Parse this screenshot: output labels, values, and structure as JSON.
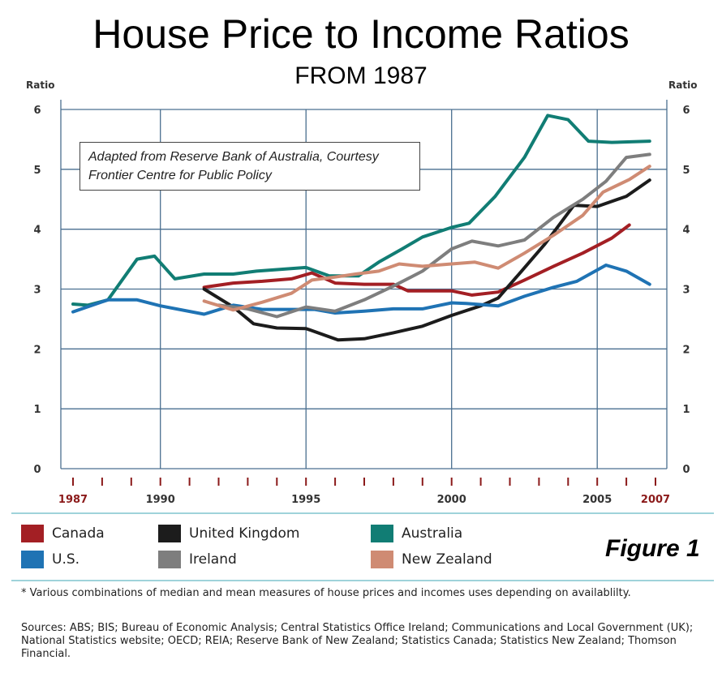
{
  "title": "House Price to Income Ratios",
  "subtitle": "FROM 1987",
  "note": {
    "line1": "Adapted from Reserve Bank of Australia, Courtesy",
    "line2": "Frontier Centre for Public Policy"
  },
  "figure_label": "Figure 1",
  "footnote": "* Various combinations of median and mean measures of house prices and incomes uses depending on availablilty.",
  "sources": "Sources: ABS; BIS; Bureau of Economic Analysis; Central Statistics Office Ireland; Communications and Local Government (UK); National Statistics website; OECD; REIA; Reserve Bank of New Zealand; Statistics Canada; Statistics New Zealand; Thomson Financial.",
  "colors": {
    "grid": "#4a6f90",
    "axis_red": "#8b1a1a"
  },
  "chart_data": {
    "type": "line",
    "title": "House Price to Income Ratios",
    "ylabel_left": "Ratio",
    "ylabel_right": "Ratio",
    "ylim": [
      0,
      6
    ],
    "yticks": [
      0,
      1,
      2,
      3,
      4,
      5,
      6
    ],
    "xlim": [
      1987,
      2007
    ],
    "xtick_labels": [
      {
        "value": 1987,
        "label": "1987",
        "highlight": true
      },
      {
        "value": 1990,
        "label": "1990",
        "highlight": false
      },
      {
        "value": 1995,
        "label": "1995",
        "highlight": false
      },
      {
        "value": 2000,
        "label": "2000",
        "highlight": false
      },
      {
        "value": 2005,
        "label": "2005",
        "highlight": false
      },
      {
        "value": 2007,
        "label": "2007",
        "highlight": true
      }
    ],
    "minor_ticks": [
      1988,
      1989,
      1991,
      1992,
      1993,
      1994,
      1996,
      1997,
      1998,
      1999,
      2001,
      2002,
      2003,
      2004,
      2006
    ],
    "legend_placement": "bottom",
    "series": [
      {
        "name": "Canada",
        "color": "#a31f24",
        "points": [
          [
            1991.5,
            3.03
          ],
          [
            1992.5,
            3.1
          ],
          [
            1993.5,
            3.13
          ],
          [
            1994.5,
            3.17
          ],
          [
            1995.2,
            3.27
          ],
          [
            1996,
            3.1
          ],
          [
            1997,
            3.08
          ],
          [
            1998,
            3.08
          ],
          [
            1998.5,
            2.97
          ],
          [
            2000,
            2.97
          ],
          [
            2000.7,
            2.9
          ],
          [
            2001.6,
            2.95
          ],
          [
            2002.5,
            3.15
          ],
          [
            2003.5,
            3.38
          ],
          [
            2004.5,
            3.6
          ],
          [
            2005.5,
            3.85
          ],
          [
            2006.1,
            4.07
          ]
        ]
      },
      {
        "name": "United Kingdom",
        "color": "#1c1c1c",
        "points": [
          [
            1991.5,
            3.0
          ],
          [
            1992.5,
            2.7
          ],
          [
            1993.2,
            2.42
          ],
          [
            1994,
            2.35
          ],
          [
            1995,
            2.34
          ],
          [
            1996.1,
            2.15
          ],
          [
            1997,
            2.17
          ],
          [
            1998,
            2.27
          ],
          [
            1999,
            2.38
          ],
          [
            2000,
            2.56
          ],
          [
            2001,
            2.72
          ],
          [
            2001.6,
            2.85
          ],
          [
            2002.4,
            3.3
          ],
          [
            2003.2,
            3.75
          ],
          [
            2004.2,
            4.4
          ],
          [
            2005,
            4.38
          ],
          [
            2006,
            4.55
          ],
          [
            2006.8,
            4.82
          ]
        ]
      },
      {
        "name": "Australia",
        "color": "#117d74",
        "points": [
          [
            1987,
            2.75
          ],
          [
            1987.5,
            2.73
          ],
          [
            1988.2,
            2.82
          ],
          [
            1989.2,
            3.5
          ],
          [
            1989.8,
            3.55
          ],
          [
            1990.5,
            3.17
          ],
          [
            1991.5,
            3.25
          ],
          [
            1992.5,
            3.25
          ],
          [
            1993.3,
            3.3
          ],
          [
            1995,
            3.36
          ],
          [
            1995.8,
            3.22
          ],
          [
            1996.8,
            3.22
          ],
          [
            1997.5,
            3.45
          ],
          [
            1998.3,
            3.67
          ],
          [
            1999,
            3.87
          ],
          [
            2000,
            4.03
          ],
          [
            2000.6,
            4.1
          ],
          [
            2001.5,
            4.55
          ],
          [
            2002.5,
            5.2
          ],
          [
            2003.3,
            5.9
          ],
          [
            2004,
            5.83
          ],
          [
            2004.7,
            5.47
          ],
          [
            2005.5,
            5.45
          ],
          [
            2006.8,
            5.47
          ]
        ]
      },
      {
        "name": "U.S.",
        "color": "#1f73b4",
        "points": [
          [
            1987,
            2.62
          ],
          [
            1988.2,
            2.82
          ],
          [
            1989.2,
            2.82
          ],
          [
            1990,
            2.72
          ],
          [
            1991.5,
            2.58
          ],
          [
            1992.5,
            2.73
          ],
          [
            1993.5,
            2.66
          ],
          [
            1994.5,
            2.66
          ],
          [
            1995.3,
            2.66
          ],
          [
            1996,
            2.6
          ],
          [
            1997,
            2.63
          ],
          [
            1998,
            2.67
          ],
          [
            1999,
            2.67
          ],
          [
            2000,
            2.77
          ],
          [
            2000.5,
            2.76
          ],
          [
            2001.6,
            2.72
          ],
          [
            2002.5,
            2.88
          ],
          [
            2003.5,
            3.03
          ],
          [
            2004.3,
            3.13
          ],
          [
            2005.3,
            3.4
          ],
          [
            2006,
            3.3
          ],
          [
            2006.8,
            3.08
          ]
        ]
      },
      {
        "name": "Ireland",
        "color": "#7e7e7e",
        "points": [
          [
            1992,
            2.73
          ],
          [
            1993,
            2.67
          ],
          [
            1994,
            2.54
          ],
          [
            1995,
            2.7
          ],
          [
            1996,
            2.63
          ],
          [
            1997,
            2.82
          ],
          [
            1998,
            3.05
          ],
          [
            1999,
            3.3
          ],
          [
            2000,
            3.67
          ],
          [
            2000.7,
            3.8
          ],
          [
            2001.6,
            3.72
          ],
          [
            2002.5,
            3.82
          ],
          [
            2003.5,
            4.2
          ],
          [
            2004.5,
            4.5
          ],
          [
            2005.3,
            4.8
          ],
          [
            2006,
            5.2
          ],
          [
            2006.8,
            5.25
          ]
        ]
      },
      {
        "name": "New Zealand",
        "color": "#cf8b73",
        "points": [
          [
            1991.5,
            2.8
          ],
          [
            1992.5,
            2.65
          ],
          [
            1993.5,
            2.78
          ],
          [
            1994.5,
            2.93
          ],
          [
            1995.2,
            3.15
          ],
          [
            1996,
            3.2
          ],
          [
            1996.7,
            3.25
          ],
          [
            1997.5,
            3.3
          ],
          [
            1998.2,
            3.42
          ],
          [
            1999,
            3.38
          ],
          [
            2000,
            3.42
          ],
          [
            2000.8,
            3.45
          ],
          [
            2001.6,
            3.35
          ],
          [
            2002.5,
            3.6
          ],
          [
            2003.5,
            3.9
          ],
          [
            2004.5,
            4.23
          ],
          [
            2005.2,
            4.62
          ],
          [
            2006.1,
            4.83
          ],
          [
            2006.8,
            5.05
          ]
        ]
      }
    ]
  },
  "legend": [
    {
      "label": "Canada",
      "color": "#a31f24"
    },
    {
      "label": "United Kingdom",
      "color": "#1c1c1c"
    },
    {
      "label": "Australia",
      "color": "#117d74"
    },
    {
      "label": "U.S.",
      "color": "#1f73b4"
    },
    {
      "label": "Ireland",
      "color": "#7e7e7e"
    },
    {
      "label": "New Zealand",
      "color": "#cf8b73"
    }
  ]
}
